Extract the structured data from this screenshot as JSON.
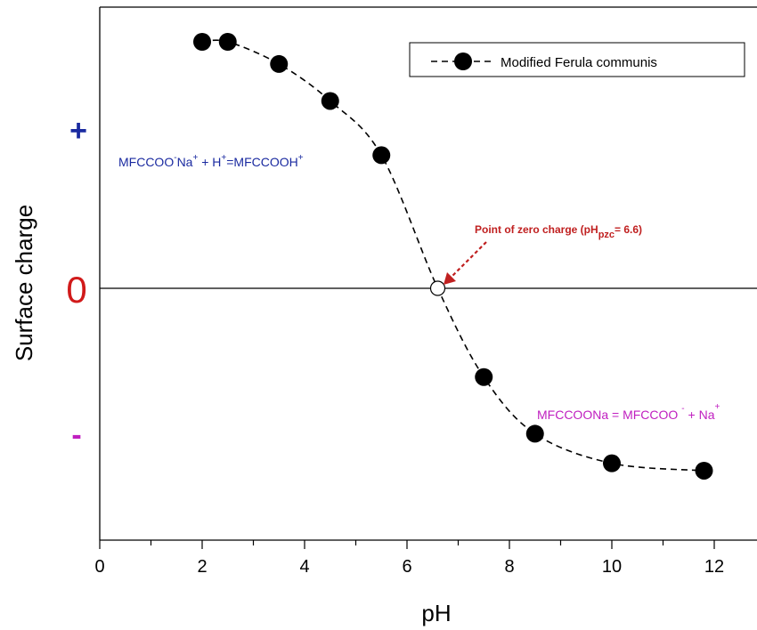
{
  "chart_data": {
    "type": "line",
    "xlabel": "pH",
    "ylabel": "Surface charge",
    "xlim": [
      0,
      13
    ],
    "x_ticks": [
      "0",
      "2",
      "4",
      "6",
      "8",
      "10",
      "12"
    ],
    "x_tick_values": [
      0,
      2,
      4,
      6,
      8,
      10,
      12
    ],
    "y_sign_labels": {
      "positive": "+",
      "zero": "0",
      "negative": "-"
    },
    "ylim": [
      -1.1,
      1.1
    ],
    "zero_line": true,
    "grid": false,
    "legend": {
      "position": "top-right"
    },
    "series": [
      {
        "name": "Modified Ferula communis",
        "line_style": "dashed",
        "marker": "filled-circle",
        "x": [
          2.0,
          2.5,
          3.5,
          4.5,
          5.5,
          7.5,
          8.5,
          10.0,
          11.8
        ],
        "y": [
          1.0,
          1.0,
          0.91,
          0.76,
          0.54,
          -0.36,
          -0.59,
          -0.71,
          -0.74
        ]
      }
    ],
    "pzc_point": {
      "x": 6.6,
      "y": 0
    },
    "annotations": {
      "pzc": {
        "prefix": "Point of zero charge (pH",
        "subscript": "pzc",
        "suffix": "= 6.6)"
      },
      "positive_equation": {
        "a": "MFCCOO",
        "b": "-",
        "c": "Na",
        "d": "+",
        "e": " + H",
        "f": "+",
        "g": "=MFCCOOH",
        "h": "+"
      },
      "negative_equation": {
        "a": "MFCCOONa = MFCCOO",
        "b": "-",
        "c": " + Na",
        "d": "+"
      }
    }
  },
  "colors": {
    "positive": "#1a2aa0",
    "zero": "#d11a1a",
    "negative": "#c020c0",
    "pzc_arrow": "#c02020"
  }
}
